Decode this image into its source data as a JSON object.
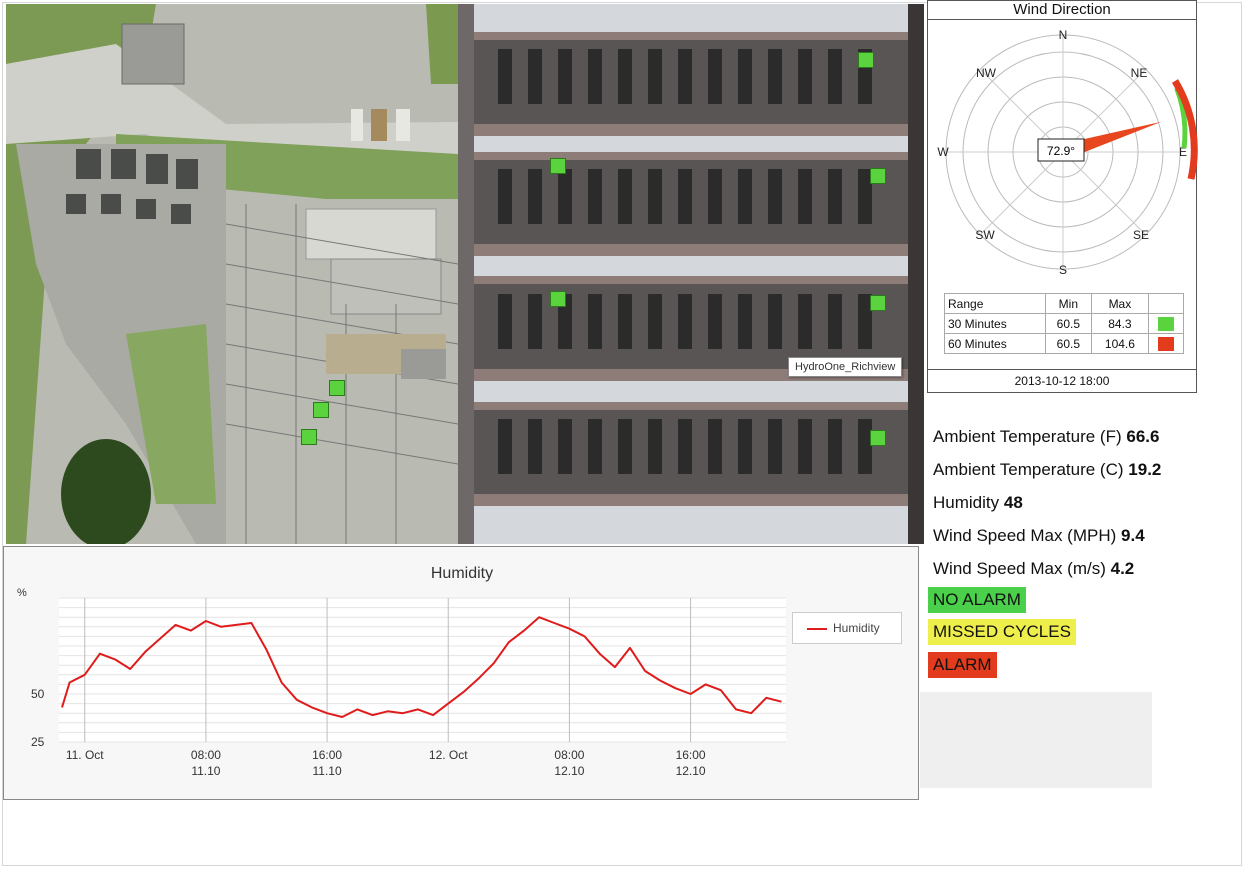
{
  "tooltip": "HydroOne_Richview",
  "wind": {
    "title": "Wind Direction",
    "directions": {
      "N": "N",
      "NE": "NE",
      "E": "E",
      "SE": "SE",
      "S": "S",
      "SW": "SW",
      "W": "W",
      "NW": "NW"
    },
    "direction_deg": 72.9,
    "direction_label": "72.9°",
    "range_header": {
      "range": "Range",
      "min": "Min",
      "max": "Max"
    },
    "ranges": [
      {
        "label": "30 Minutes",
        "min": "60.5",
        "max": "84.3",
        "color": "#5bd33e"
      },
      {
        "label": "60 Minutes",
        "min": "60.5",
        "max": "104.6",
        "color": "#e23b1d"
      }
    ],
    "timestamp": "2013-10-12 18:00"
  },
  "readings": [
    {
      "label": "Ambient Temperature (F)",
      "value": "66.6"
    },
    {
      "label": "Ambient Temperature (C)",
      "value": "19.2"
    },
    {
      "label": "Humidity",
      "value": "48"
    },
    {
      "label": "Wind Speed Max (MPH)",
      "value": "9.4"
    },
    {
      "label": "Wind Speed Max (m/s)",
      "value": "4.2"
    }
  ],
  "status_legend": {
    "no_alarm": {
      "label": "NO ALARM",
      "color": "#4ad04a"
    },
    "missed": {
      "label": "MISSED CYCLES",
      "color": "#eeee4c"
    },
    "alarm": {
      "label": "ALARM",
      "color": "#e23b1d"
    }
  },
  "chart_data": {
    "type": "line",
    "title": "Humidity",
    "ylabel": "%",
    "ylim": [
      25,
      100
    ],
    "yticks": [
      "25",
      "50"
    ],
    "xticks": [
      {
        "t": 0,
        "line1": "11. Oct",
        "line2": ""
      },
      {
        "t": 8,
        "line1": "08:00",
        "line2": "11.10"
      },
      {
        "t": 16,
        "line1": "16:00",
        "line2": "11.10"
      },
      {
        "t": 24,
        "line1": "12. Oct",
        "line2": ""
      },
      {
        "t": 32,
        "line1": "08:00",
        "line2": "12.10"
      },
      {
        "t": 40,
        "line1": "16:00",
        "line2": "12.10"
      }
    ],
    "series": [
      {
        "name": "Humidity",
        "color": "#e01b1b",
        "x": [
          -1.5,
          -1,
          0,
          1,
          2,
          3,
          4,
          5,
          6,
          7,
          8,
          9,
          10,
          11,
          12,
          13,
          14,
          15,
          16,
          17,
          18,
          19,
          20,
          21,
          22,
          23,
          24,
          25,
          26,
          27,
          28,
          29,
          30,
          31,
          32,
          33,
          34,
          35,
          36,
          37,
          38,
          39,
          40,
          41,
          42,
          43,
          44,
          45,
          46
        ],
        "y": [
          43,
          56,
          60,
          71,
          68,
          63,
          72,
          79,
          86,
          83,
          88,
          85,
          86,
          87,
          73,
          56,
          47,
          43,
          40,
          38,
          42,
          39,
          41,
          40,
          42,
          39,
          45,
          51,
          58,
          66,
          77,
          83,
          90,
          87,
          84,
          80,
          71,
          64,
          74,
          62,
          57,
          53,
          50,
          55,
          52,
          42,
          40,
          48,
          46
        ]
      }
    ],
    "legend_position": "right"
  }
}
